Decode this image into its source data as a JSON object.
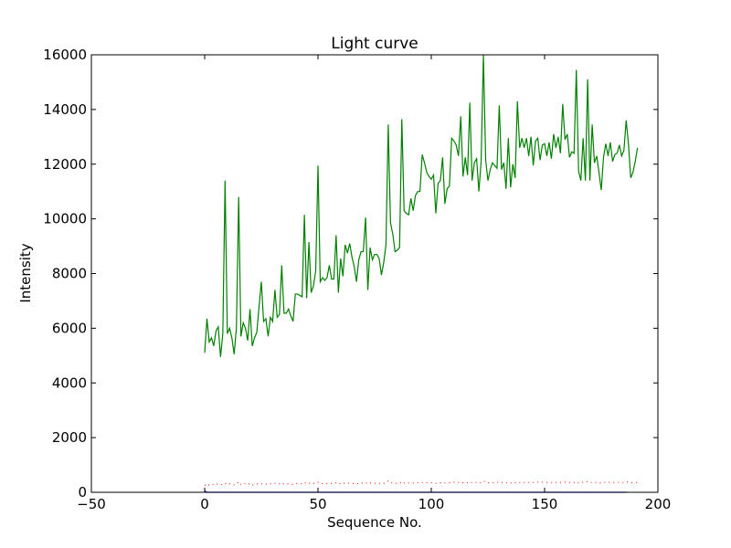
{
  "chart_data": {
    "type": "line",
    "title": "Light curve",
    "xlabel": "Sequence No.",
    "ylabel": "Intensity",
    "xlim": [
      -50,
      200
    ],
    "ylim": [
      0,
      16000
    ],
    "x_ticks": [
      -50,
      0,
      50,
      100,
      150,
      200
    ],
    "y_ticks": [
      0,
      2000,
      4000,
      6000,
      8000,
      10000,
      12000,
      14000,
      16000
    ],
    "grid": false,
    "legend": "none",
    "series": [
      {
        "color": "#008000",
        "style": "solid",
        "x_start": 0,
        "x_step": 1,
        "values": [
          5100,
          6350,
          5500,
          5650,
          5350,
          5900,
          6050,
          4950,
          5800,
          11400,
          5800,
          6000,
          5650,
          5050,
          6000,
          10800,
          5700,
          6200,
          6000,
          5550,
          6700,
          5350,
          5650,
          5850,
          6800,
          7700,
          6250,
          6350,
          5700,
          6400,
          6250,
          7400,
          6400,
          6500,
          8300,
          6550,
          6550,
          6700,
          6450,
          6250,
          7250,
          7250,
          7200,
          7150,
          10150,
          7100,
          9150,
          7300,
          7550,
          8100,
          11950,
          7700,
          7850,
          7750,
          7850,
          8300,
          7800,
          7800,
          9400,
          7300,
          8550,
          7900,
          9050,
          8750,
          9100,
          8600,
          8250,
          7700,
          8500,
          8800,
          8800,
          10050,
          7400,
          8950,
          8500,
          8700,
          8700,
          8550,
          7950,
          8400,
          9050,
          13450,
          9850,
          9450,
          8800,
          8850,
          8950,
          13650,
          10300,
          10200,
          10150,
          10750,
          10300,
          10850,
          11000,
          11000,
          12350,
          12050,
          11700,
          11550,
          11450,
          11600,
          10200,
          11300,
          11400,
          12250,
          10550,
          11100,
          11200,
          12950,
          12850,
          12700,
          12300,
          13750,
          11550,
          12250,
          11600,
          14250,
          11400,
          12050,
          12200,
          11000,
          12100,
          16000,
          12150,
          11400,
          11800,
          12050,
          11950,
          11850,
          14150,
          11800,
          12050,
          11100,
          12950,
          11150,
          12000,
          11500,
          14300,
          12600,
          12950,
          12600,
          12950,
          12300,
          13000,
          11950,
          12850,
          12950,
          12150,
          12700,
          12750,
          12300,
          12800,
          12200,
          13100,
          12600,
          13000,
          12400,
          14200,
          12900,
          13100,
          12250,
          12450,
          12400,
          15450,
          11750,
          11400,
          12950,
          11400,
          15100,
          11400,
          13450,
          12050,
          12300,
          11700,
          11050,
          12250,
          12750,
          12300,
          12800,
          12100,
          12350,
          12400,
          12700,
          12300,
          12500,
          13600,
          12750,
          11500,
          11700,
          12100,
          12600
        ]
      },
      {
        "color": "#ff0000",
        "style": "dotted",
        "x_start": 0,
        "x_step": 1,
        "values": [
          250,
          310,
          260,
          300,
          280,
          320,
          290,
          260,
          300,
          330,
          270,
          310,
          280,
          270,
          300,
          390,
          280,
          300,
          320,
          280,
          330,
          270,
          290,
          300,
          310,
          320,
          290,
          300,
          280,
          310,
          300,
          330,
          300,
          310,
          350,
          300,
          300,
          310,
          300,
          280,
          320,
          320,
          310,
          310,
          360,
          310,
          340,
          310,
          320,
          330,
          370,
          320,
          320,
          310,
          320,
          340,
          320,
          320,
          350,
          300,
          330,
          310,
          340,
          330,
          340,
          330,
          320,
          300,
          330,
          340,
          340,
          360,
          300,
          340,
          330,
          330,
          330,
          330,
          310,
          320,
          340,
          420,
          360,
          350,
          330,
          330,
          330,
          400,
          340,
          340,
          340,
          350,
          340,
          350,
          350,
          350,
          360,
          360,
          350,
          350,
          350,
          350,
          330,
          350,
          350,
          360,
          340,
          350,
          350,
          370,
          370,
          370,
          360,
          380,
          350,
          360,
          350,
          390,
          350,
          360,
          360,
          340,
          360,
          420,
          360,
          350,
          360,
          360,
          360,
          360,
          380,
          360,
          360,
          340,
          370,
          340,
          360,
          350,
          380,
          360,
          370,
          360,
          370,
          360,
          370,
          360,
          370,
          370,
          360,
          370,
          370,
          360,
          370,
          360,
          370,
          360,
          370,
          360,
          380,
          370,
          370,
          360,
          360,
          360,
          400,
          350,
          350,
          370,
          350,
          390,
          350,
          370,
          360,
          360,
          350,
          340,
          360,
          370,
          360,
          370,
          360,
          360,
          360,
          370,
          360,
          360,
          380,
          370,
          350,
          350,
          360,
          360
        ]
      },
      {
        "color": "#0000ff",
        "style": "solid",
        "x_start": 0,
        "x_step": 1,
        "values": [
          50,
          0,
          0,
          0,
          0,
          0,
          0,
          0,
          0,
          0,
          0,
          0,
          0,
          0,
          0,
          0,
          0,
          0,
          0,
          0,
          0,
          0,
          0,
          0,
          0,
          0,
          0,
          0,
          0,
          0,
          0,
          0,
          0,
          0,
          0,
          0,
          0,
          0,
          0,
          0,
          0,
          0,
          0,
          0,
          0,
          0,
          0,
          0,
          0,
          0,
          0,
          0,
          0,
          0,
          0,
          0,
          0,
          0,
          0,
          0,
          0,
          0,
          0,
          0,
          0,
          0,
          0,
          0,
          0,
          0,
          0,
          0,
          0,
          0,
          0,
          0,
          0,
          0,
          0,
          0,
          0,
          0,
          0,
          0,
          0,
          0,
          0,
          0,
          0,
          0,
          0,
          0,
          0,
          0,
          0,
          0,
          0,
          0,
          0,
          0,
          0,
          0,
          0,
          0,
          0,
          0,
          0,
          0,
          0,
          0,
          0,
          0,
          0,
          0,
          0,
          0,
          0,
          0,
          0,
          0,
          0,
          0,
          0,
          0,
          0,
          0,
          0,
          0,
          0,
          0,
          0,
          0,
          0,
          0,
          0,
          0,
          0,
          0,
          0,
          0,
          0,
          0,
          0,
          0,
          0,
          0,
          0,
          0,
          0,
          0,
          0,
          0,
          0,
          0,
          0,
          0,
          0,
          0,
          0,
          0,
          0,
          0,
          0,
          0,
          0,
          0,
          0,
          0,
          0,
          0,
          0,
          0,
          0,
          0,
          0,
          0,
          0,
          0,
          0,
          0,
          0,
          0,
          0,
          0,
          0,
          0,
          0
        ]
      }
    ]
  }
}
